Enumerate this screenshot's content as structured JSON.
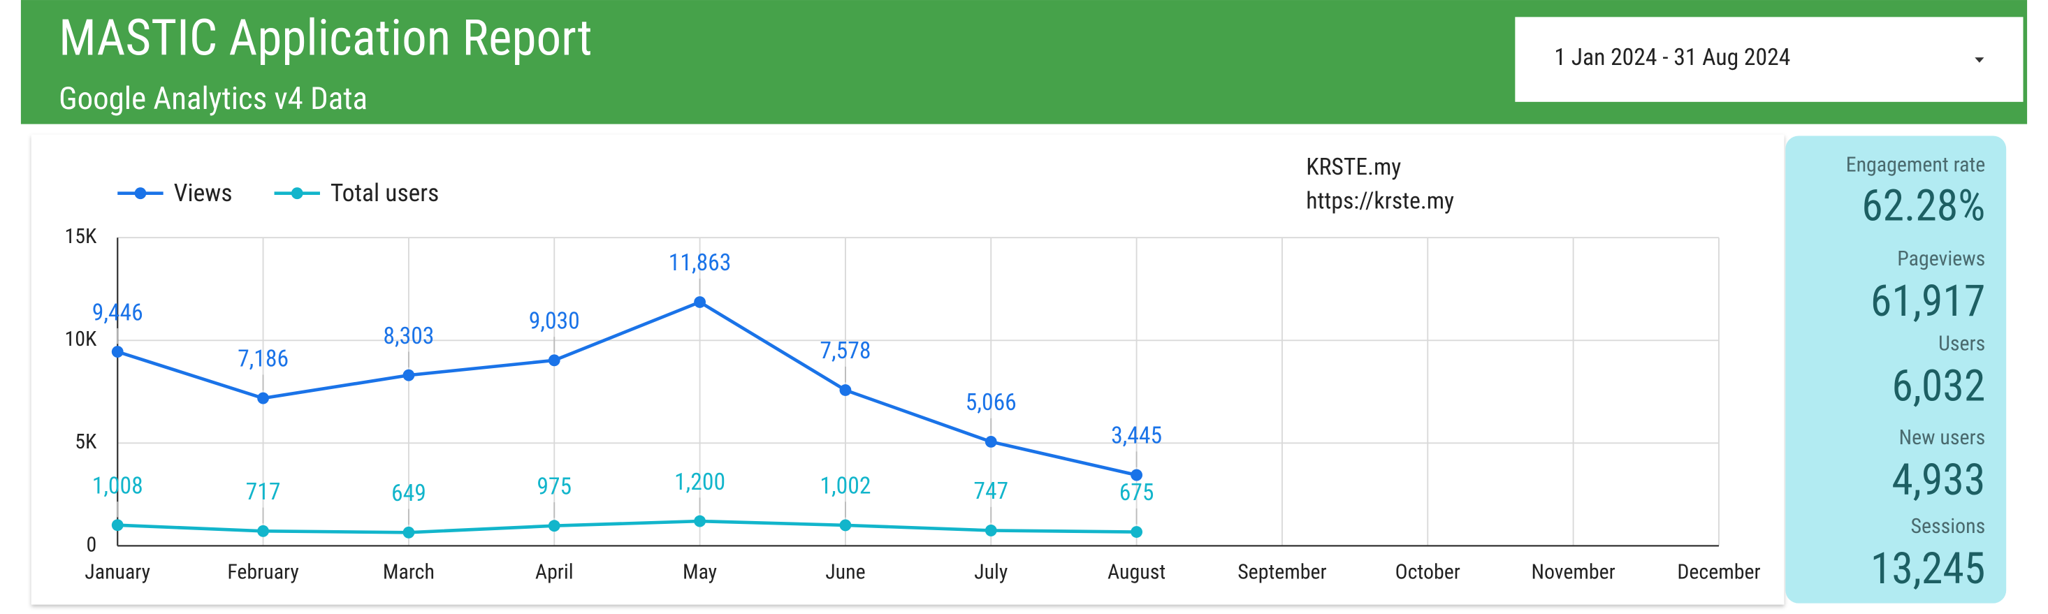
{
  "header": {
    "title": "MASTIC Application Report",
    "subtitle": "Google Analytics v4 Data"
  },
  "date_range": "1 Jan 2024 - 31 Aug 2024",
  "site": {
    "name": "KRSTE.my",
    "url": "https://krste.my"
  },
  "chart_data": {
    "type": "line",
    "categories": [
      "January",
      "February",
      "March",
      "April",
      "May",
      "June",
      "July",
      "August",
      "September",
      "October",
      "November",
      "December"
    ],
    "series": [
      {
        "name": "Views",
        "color": "#1a73e8",
        "values": [
          9446,
          7186,
          8303,
          9030,
          11863,
          7578,
          5066,
          3445,
          null,
          null,
          null,
          null
        ],
        "value_labels": [
          "9,446",
          "7,186",
          "8,303",
          "9,030",
          "11,863",
          "7,578",
          "5,066",
          "3,445",
          null,
          null,
          null,
          null
        ]
      },
      {
        "name": "Total users",
        "color": "#12b5cb",
        "values": [
          1008,
          717,
          649,
          975,
          1200,
          1002,
          747,
          675,
          null,
          null,
          null,
          null
        ],
        "value_labels": [
          "1,008",
          "717",
          "649",
          "975",
          "1,200",
          "1,002",
          "747",
          "675",
          null,
          null,
          null,
          null
        ]
      }
    ],
    "ylim": [
      0,
      15000
    ],
    "yticks": [
      0,
      {
        "value": 5000,
        "label": "5K"
      },
      {
        "value": 10000,
        "label": "10K"
      },
      {
        "value": 15000,
        "label": "15K"
      }
    ],
    "grid": true
  },
  "kpis": [
    {
      "label": "Engagement rate",
      "value": "62.28%"
    },
    {
      "label": "Pageviews",
      "value": "61,917"
    },
    {
      "label": "Users",
      "value": "6,032"
    },
    {
      "label": "New users",
      "value": "4,933"
    },
    {
      "label": "Sessions",
      "value": "13,245"
    }
  ]
}
